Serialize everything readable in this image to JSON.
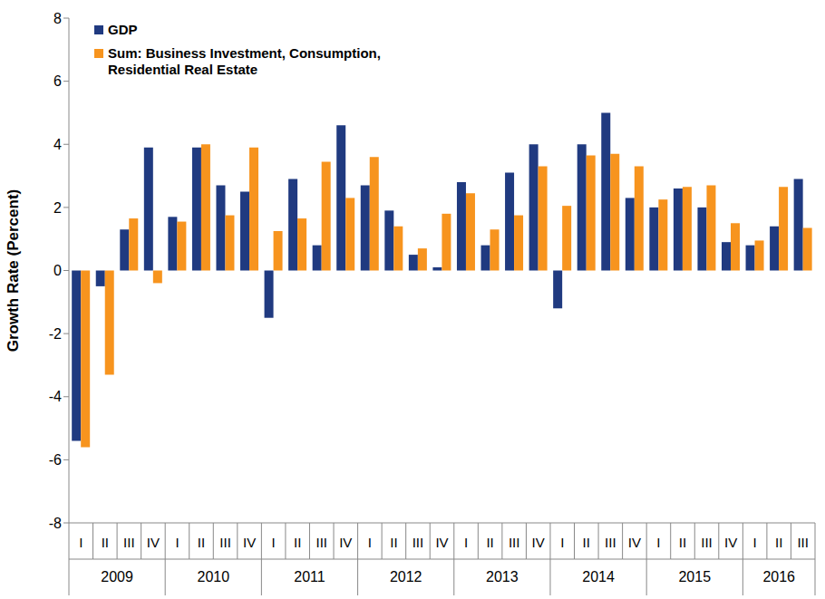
{
  "chart_data": {
    "type": "bar",
    "y_label": "Growth Rate (Percent)",
    "categories": [
      "I",
      "II",
      "III",
      "IV",
      "I",
      "II",
      "III",
      "IV",
      "I",
      "II",
      "III",
      "IV",
      "I",
      "II",
      "III",
      "IV",
      "I",
      "II",
      "III",
      "IV",
      "I",
      "II",
      "III",
      "IV",
      "I",
      "II",
      "III",
      "IV",
      "I",
      "II",
      "III"
    ],
    "category_groups": [
      "2009",
      "2009",
      "2009",
      "2009",
      "2010",
      "2010",
      "2010",
      "2010",
      "2011",
      "2011",
      "2011",
      "2011",
      "2012",
      "2012",
      "2012",
      "2012",
      "2013",
      "2013",
      "2013",
      "2013",
      "2014",
      "2014",
      "2014",
      "2014",
      "2015",
      "2015",
      "2015",
      "2015",
      "2016",
      "2016",
      "2016"
    ],
    "series": [
      {
        "name": "GDP",
        "color": "#203A80",
        "values": [
          -5.4,
          -0.5,
          1.3,
          3.9,
          1.7,
          3.9,
          2.7,
          2.5,
          -1.5,
          2.9,
          0.8,
          4.6,
          2.7,
          1.9,
          0.5,
          0.1,
          2.8,
          0.8,
          3.1,
          4.0,
          -1.2,
          4.0,
          5.0,
          2.3,
          2.0,
          2.6,
          2.0,
          0.9,
          0.8,
          1.4,
          2.9
        ]
      },
      {
        "name": "Sum: Business Investment, Consumption, Residential Real Estate",
        "color": "#F7941E",
        "values": [
          -5.6,
          -3.3,
          1.65,
          -0.4,
          1.55,
          4.0,
          1.75,
          3.9,
          1.25,
          1.65,
          3.45,
          2.3,
          3.6,
          1.4,
          0.7,
          1.8,
          2.45,
          1.3,
          1.75,
          3.3,
          2.05,
          3.65,
          3.7,
          3.3,
          2.25,
          2.65,
          2.7,
          1.5,
          0.95,
          2.65,
          1.35
        ]
      }
    ],
    "ylim": [
      -8,
      8
    ],
    "yticks": [
      -8,
      -6,
      -4,
      -2,
      0,
      2,
      4,
      6,
      8
    ],
    "grid": false,
    "legend": "upper left"
  }
}
